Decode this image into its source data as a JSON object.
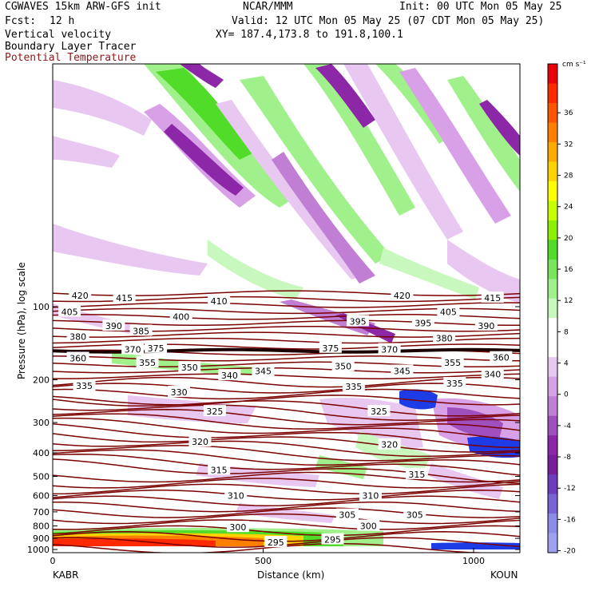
{
  "header": {
    "line1_left": "CGWAVES 15km ARW-GFS init",
    "line1_mid": "NCAR/MMM",
    "line1_right": "Init: 00 UTC Mon 05 May 25",
    "fcst_label": "Fcst:",
    "fcst_value": "12 h",
    "valid": "Valid: 12 UTC Mon 05 May 25 (07 CDT Mon 05 May 25)",
    "field1": "Vertical velocity",
    "field2": "Boundary Layer Tracer",
    "field3": "Potential Temperature",
    "xy": "XY= 187.4,173.8 to 191.8,100.1"
  },
  "colors": {
    "theta_line": "#7a0000",
    "theta_label_bg": "#ffffff",
    "title_red": "#8b1a1a"
  },
  "colorbar": {
    "unit": "cm s⁻¹",
    "ticks": [
      "36",
      "32",
      "28",
      "24",
      "20",
      "16",
      "12",
      "8",
      "4",
      "0",
      "-4",
      "-8",
      "-12",
      "-16",
      "-20"
    ],
    "colors": [
      "#e8000b",
      "#ff2a00",
      "#ff5500",
      "#ff8000",
      "#ffaa00",
      "#ffd200",
      "#ffff00",
      "#c8ff00",
      "#8cf000",
      "#50dc28",
      "#78e65a",
      "#a0f08c",
      "#c8f8be",
      "#ffffff",
      "#ffffff",
      "#e8c8f0",
      "#d8a0e6",
      "#c07ed4",
      "#a050be",
      "#8c28a8",
      "#781e9a",
      "#6e3cbe",
      "#7864d6",
      "#8c8ce8",
      "#a0a0f0"
    ]
  },
  "chart_data": {
    "type": "contour",
    "xlabel": "Distance (km)",
    "ylabel": "Pressure (hPa), log scale",
    "x_ticks": [
      "0",
      "500",
      "1000"
    ],
    "x_ticks_values": [
      0,
      500,
      1000
    ],
    "xlim": [
      0,
      1110
    ],
    "y_ticks": [
      "100",
      "200",
      "300",
      "400",
      "500",
      "600",
      "700",
      "800",
      "900",
      "1000"
    ],
    "y_tick_values": [
      100,
      200,
      300,
      400,
      500,
      600,
      700,
      800,
      900,
      1000
    ],
    "x_start_label": "KABR",
    "x_end_label": "KOUN",
    "theta_labels": [
      {
        "text": "420",
        "x": 65,
        "p": 90
      },
      {
        "text": "415",
        "x": 170,
        "p": 92
      },
      {
        "text": "410",
        "x": 395,
        "p": 95
      },
      {
        "text": "420",
        "x": 830,
        "p": 90
      },
      {
        "text": "415",
        "x": 1045,
        "p": 92
      },
      {
        "text": "405",
        "x": 40,
        "p": 105
      },
      {
        "text": "400",
        "x": 305,
        "p": 110
      },
      {
        "text": "405",
        "x": 940,
        "p": 105
      },
      {
        "text": "390",
        "x": 145,
        "p": 120
      },
      {
        "text": "385",
        "x": 210,
        "p": 126
      },
      {
        "text": "395",
        "x": 725,
        "p": 115
      },
      {
        "text": "395",
        "x": 880,
        "p": 117
      },
      {
        "text": "390",
        "x": 1030,
        "p": 120
      },
      {
        "text": "380",
        "x": 60,
        "p": 133
      },
      {
        "text": "380",
        "x": 930,
        "p": 135
      },
      {
        "text": "375",
        "x": 245,
        "p": 148
      },
      {
        "text": "370",
        "x": 190,
        "p": 150
      },
      {
        "text": "375",
        "x": 660,
        "p": 148
      },
      {
        "text": "370",
        "x": 800,
        "p": 150
      },
      {
        "text": "360",
        "x": 60,
        "p": 163
      },
      {
        "text": "355",
        "x": 225,
        "p": 170
      },
      {
        "text": "350",
        "x": 325,
        "p": 178
      },
      {
        "text": "345",
        "x": 500,
        "p": 184
      },
      {
        "text": "340",
        "x": 420,
        "p": 192
      },
      {
        "text": "350",
        "x": 690,
        "p": 176
      },
      {
        "text": "345",
        "x": 830,
        "p": 184
      },
      {
        "text": "355",
        "x": 950,
        "p": 170
      },
      {
        "text": "360",
        "x": 1065,
        "p": 162
      },
      {
        "text": "340",
        "x": 1045,
        "p": 190
      },
      {
        "text": "335",
        "x": 75,
        "p": 212
      },
      {
        "text": "330",
        "x": 300,
        "p": 225
      },
      {
        "text": "335",
        "x": 715,
        "p": 213
      },
      {
        "text": "335",
        "x": 955,
        "p": 207
      },
      {
        "text": "325",
        "x": 385,
        "p": 270
      },
      {
        "text": "325",
        "x": 775,
        "p": 270
      },
      {
        "text": "320",
        "x": 350,
        "p": 360
      },
      {
        "text": "320",
        "x": 800,
        "p": 370
      },
      {
        "text": "315",
        "x": 395,
        "p": 470
      },
      {
        "text": "315",
        "x": 865,
        "p": 490
      },
      {
        "text": "310",
        "x": 435,
        "p": 600
      },
      {
        "text": "310",
        "x": 755,
        "p": 600
      },
      {
        "text": "305",
        "x": 700,
        "p": 720
      },
      {
        "text": "305",
        "x": 860,
        "p": 720
      },
      {
        "text": "300",
        "x": 440,
        "p": 810
      },
      {
        "text": "300",
        "x": 750,
        "p": 800
      },
      {
        "text": "295",
        "x": 530,
        "p": 935
      },
      {
        "text": "295",
        "x": 665,
        "p": 910
      }
    ]
  }
}
